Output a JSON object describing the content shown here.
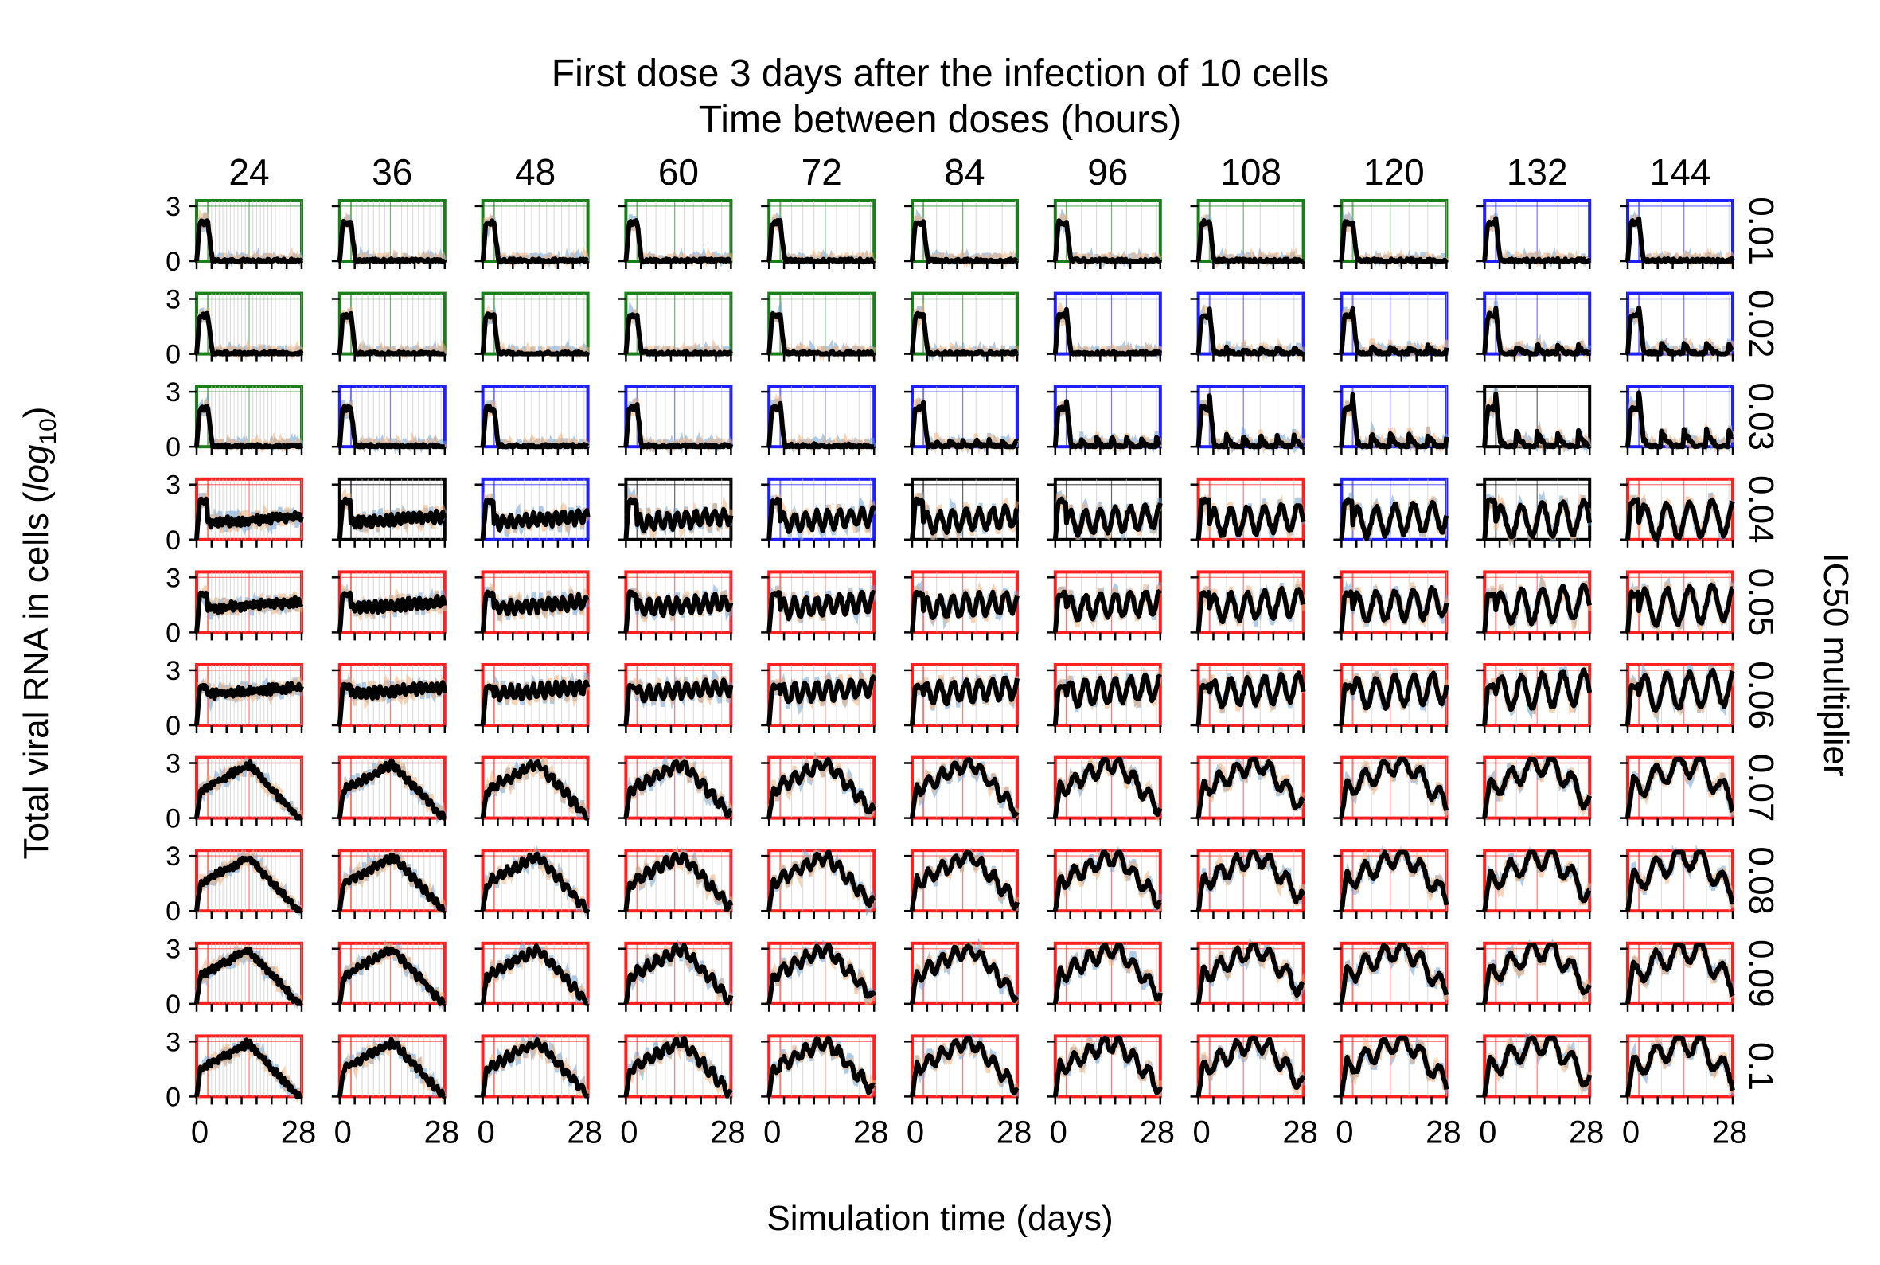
{
  "chart_data": {
    "type": "line",
    "title_lines": [
      "First dose 3 days after the infection of 10 cells",
      "Time between doses (hours)"
    ],
    "xlabel": "Simulation time (days)",
    "ylabel_text": "Total viral RNA in cells (",
    "ylabel_math_main": "log",
    "ylabel_math_sub": "10",
    "ylabel_close": ")",
    "right_label": "IC50 multiplier",
    "col_headers": [
      "24",
      "36",
      "48",
      "60",
      "72",
      "84",
      "96",
      "108",
      "120",
      "132",
      "144"
    ],
    "row_headers": [
      "0.01",
      "0.02",
      "0.03",
      "0.04",
      "0.05",
      "0.06",
      "0.07",
      "0.08",
      "0.09",
      "0.1"
    ],
    "ytick_labels": [
      "3",
      "0"
    ],
    "xtick_labels": [
      "0",
      "28"
    ],
    "xlim": [
      0,
      28
    ],
    "ylim": [
      0,
      3.3
    ],
    "first_dose_day": 3,
    "frame_colors": {
      "g": "#1a7f1a",
      "b": "#1f1fff",
      "k": "#000000",
      "r": "#ff2020"
    },
    "frame_grid": [
      [
        "g",
        "g",
        "g",
        "g",
        "g",
        "g",
        "g",
        "g",
        "g",
        "b",
        "b"
      ],
      [
        "g",
        "g",
        "g",
        "g",
        "g",
        "g",
        "b",
        "b",
        "b",
        "b",
        "b"
      ],
      [
        "g",
        "b",
        "b",
        "b",
        "b",
        "b",
        "b",
        "b",
        "b",
        "k",
        "b"
      ],
      [
        "r",
        "k",
        "b",
        "k",
        "b",
        "k",
        "k",
        "r",
        "b",
        "k",
        "r"
      ],
      [
        "r",
        "r",
        "r",
        "r",
        "r",
        "r",
        "r",
        "r",
        "r",
        "r",
        "r"
      ],
      [
        "r",
        "r",
        "r",
        "r",
        "r",
        "r",
        "r",
        "r",
        "r",
        "r",
        "r"
      ],
      [
        "r",
        "r",
        "r",
        "r",
        "r",
        "r",
        "r",
        "r",
        "r",
        "r",
        "r"
      ],
      [
        "r",
        "r",
        "r",
        "r",
        "r",
        "r",
        "r",
        "r",
        "r",
        "r",
        "r"
      ],
      [
        "r",
        "r",
        "r",
        "r",
        "r",
        "r",
        "r",
        "r",
        "r",
        "r",
        "r"
      ],
      [
        "r",
        "r",
        "r",
        "r",
        "r",
        "r",
        "r",
        "r",
        "r",
        "r",
        "r"
      ]
    ],
    "series_colors": {
      "mean": "#000000",
      "replicate_a": "#6fa0d2",
      "replicate_b": "#f0b07a"
    },
    "series": [
      {
        "name": "mean"
      },
      {
        "name": "replicate_a"
      },
      {
        "name": "replicate_b"
      }
    ]
  }
}
